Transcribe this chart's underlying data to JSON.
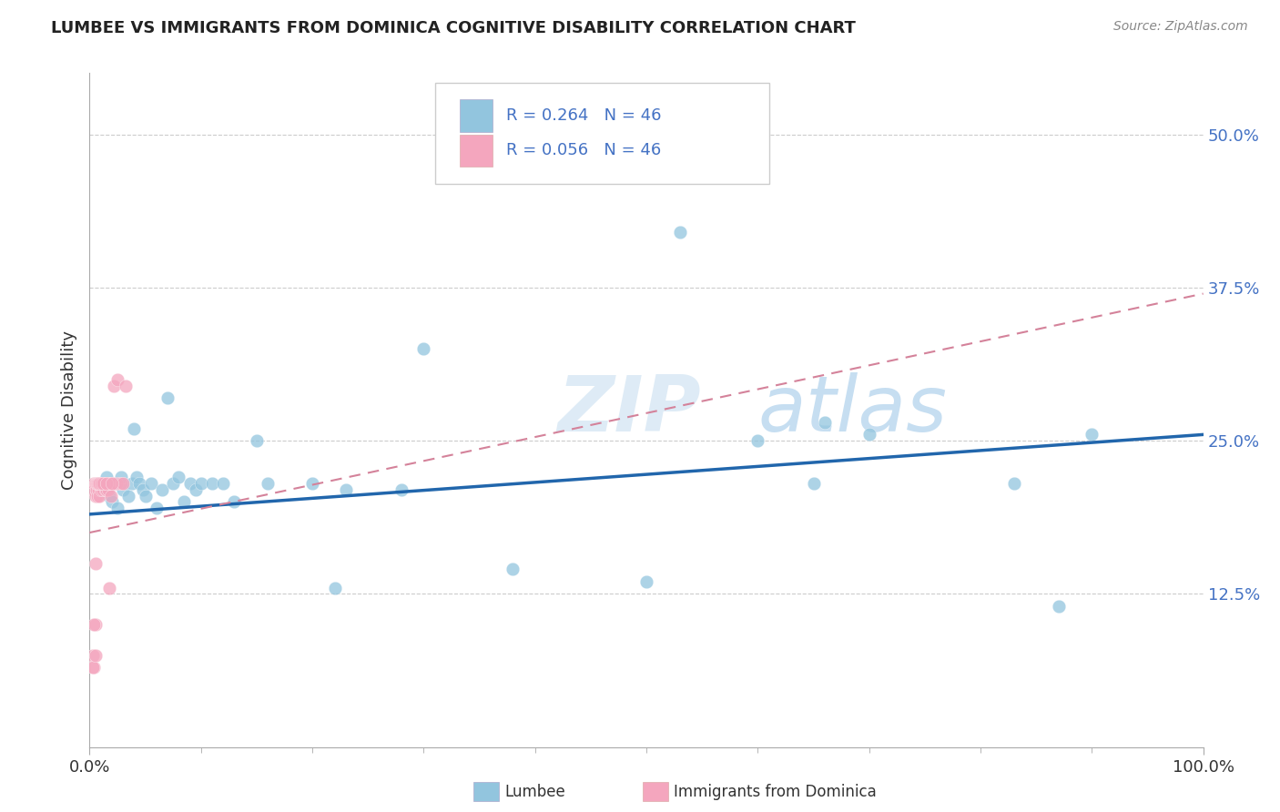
{
  "title": "LUMBEE VS IMMIGRANTS FROM DOMINICA COGNITIVE DISABILITY CORRELATION CHART",
  "source_text": "Source: ZipAtlas.com",
  "ylabel": "Cognitive Disability",
  "legend_R1": "R = 0.264",
  "legend_N1": "N = 46",
  "legend_R2": "R = 0.056",
  "legend_N2": "N = 46",
  "legend_label1": "Lumbee",
  "legend_label2": "Immigrants from Dominica",
  "xlim": [
    0.0,
    1.0
  ],
  "ylim": [
    0.0,
    0.55
  ],
  "yticks": [
    0.125,
    0.25,
    0.375,
    0.5
  ],
  "ytick_labels": [
    "12.5%",
    "25.0%",
    "37.5%",
    "50.0%"
  ],
  "xtick_labels": [
    "0.0%",
    "100.0%"
  ],
  "color_blue": "#92c5de",
  "color_pink": "#f4a6be",
  "color_blue_line": "#2166ac",
  "color_pink_line": "#d4829a",
  "color_axis_text": "#4472c4",
  "background_color": "#ffffff",
  "watermark_text": "ZIPatlas",
  "lumbee_x": [
    0.008,
    0.012,
    0.015,
    0.018,
    0.02,
    0.022,
    0.025,
    0.028,
    0.03,
    0.035,
    0.038,
    0.04,
    0.042,
    0.045,
    0.048,
    0.05,
    0.055,
    0.06,
    0.065,
    0.07,
    0.075,
    0.08,
    0.085,
    0.09,
    0.095,
    0.1,
    0.11,
    0.12,
    0.13,
    0.15,
    0.16,
    0.2,
    0.22,
    0.23,
    0.28,
    0.3,
    0.38,
    0.5,
    0.53,
    0.6,
    0.65,
    0.66,
    0.7,
    0.83,
    0.87,
    0.9
  ],
  "lumbee_y": [
    0.215,
    0.21,
    0.22,
    0.205,
    0.2,
    0.215,
    0.195,
    0.22,
    0.21,
    0.205,
    0.215,
    0.26,
    0.22,
    0.215,
    0.21,
    0.205,
    0.215,
    0.195,
    0.21,
    0.285,
    0.215,
    0.22,
    0.2,
    0.215,
    0.21,
    0.215,
    0.215,
    0.215,
    0.2,
    0.25,
    0.215,
    0.215,
    0.13,
    0.21,
    0.21,
    0.325,
    0.145,
    0.135,
    0.42,
    0.25,
    0.215,
    0.265,
    0.255,
    0.215,
    0.115,
    0.255
  ],
  "dominica_x": [
    0.003,
    0.004,
    0.005,
    0.005,
    0.006,
    0.007,
    0.007,
    0.008,
    0.008,
    0.009,
    0.01,
    0.01,
    0.011,
    0.012,
    0.012,
    0.013,
    0.014,
    0.015,
    0.015,
    0.016,
    0.017,
    0.018,
    0.019,
    0.02,
    0.022,
    0.024,
    0.025,
    0.028,
    0.03,
    0.032,
    0.005,
    0.006,
    0.007,
    0.008,
    0.009,
    0.01,
    0.012,
    0.015,
    0.018,
    0.02,
    0.005,
    0.004,
    0.003,
    0.003,
    0.004,
    0.005
  ],
  "dominica_y": [
    0.21,
    0.215,
    0.205,
    0.215,
    0.21,
    0.215,
    0.205,
    0.21,
    0.215,
    0.205,
    0.215,
    0.21,
    0.215,
    0.215,
    0.21,
    0.215,
    0.21,
    0.215,
    0.21,
    0.215,
    0.21,
    0.215,
    0.205,
    0.215,
    0.295,
    0.215,
    0.3,
    0.215,
    0.215,
    0.295,
    0.15,
    0.215,
    0.215,
    0.215,
    0.215,
    0.215,
    0.215,
    0.215,
    0.13,
    0.215,
    0.1,
    0.065,
    0.075,
    0.065,
    0.1,
    0.075
  ]
}
